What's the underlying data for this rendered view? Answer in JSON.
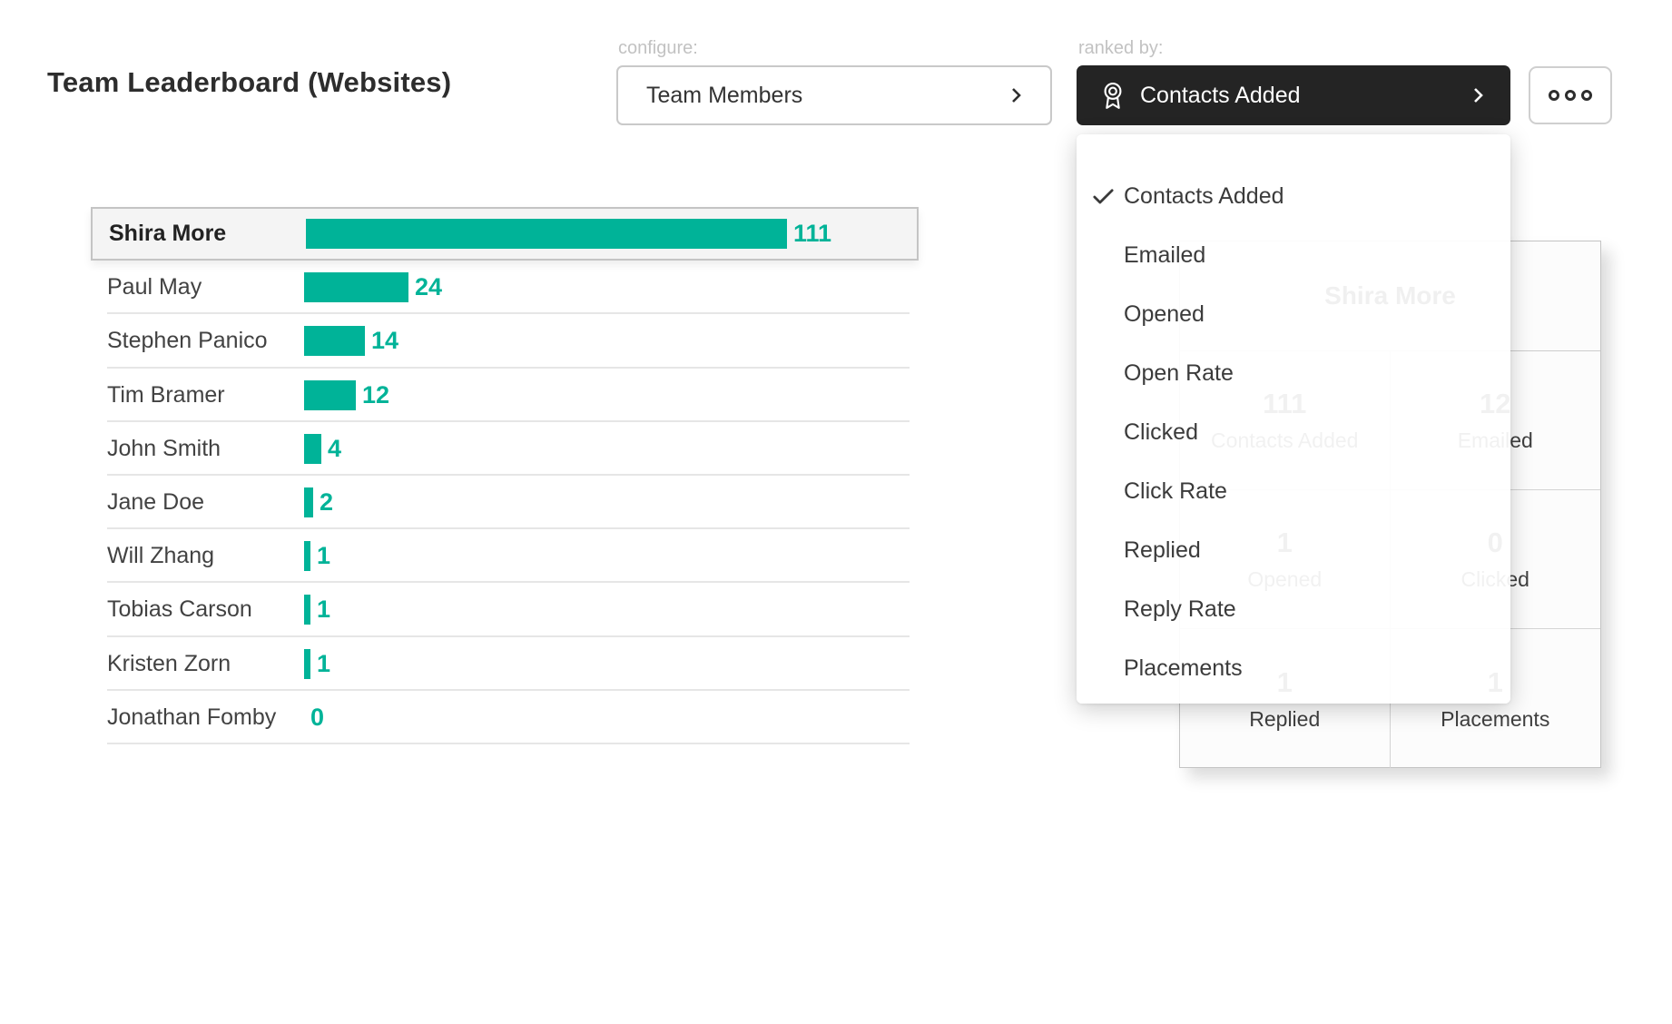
{
  "header": {
    "title": "Team Leaderboard (Websites)",
    "configure_label": "configure:",
    "configure_value": "Team Members",
    "ranked_by_label": "ranked by:",
    "ranked_by_value": "Contacts Added"
  },
  "colors": {
    "accent_teal": "#00b398",
    "dark_button_bg": "#242424",
    "selected_row_bg": "#f4f4f4"
  },
  "chart_data": {
    "type": "bar",
    "orientation": "horizontal",
    "title": "Team Leaderboard (Websites)",
    "metric": "Contacts Added",
    "categories": [
      "Shira More",
      "Paul May",
      "Stephen Panico",
      "Tim Bramer",
      "John Smith",
      "Jane Doe",
      "Will Zhang",
      "Tobias Carson",
      "Kristen Zorn",
      "Jonathan Fomby"
    ],
    "values": [
      111,
      24,
      14,
      12,
      4,
      2,
      1,
      1,
      1,
      0
    ],
    "highlighted_category": "Shira More",
    "bar_color": "#00b398",
    "value_labels_shown": true,
    "xlabel": "",
    "ylabel": ""
  },
  "ranked_by_menu": {
    "items": [
      {
        "label": "Contacts Added",
        "checked": true
      },
      {
        "label": "Emailed",
        "checked": false
      },
      {
        "label": "Opened",
        "checked": false
      },
      {
        "label": "Open Rate",
        "checked": false
      },
      {
        "label": "Clicked",
        "checked": false
      },
      {
        "label": "Click Rate",
        "checked": false
      },
      {
        "label": "Replied",
        "checked": false
      },
      {
        "label": "Reply Rate",
        "checked": false
      },
      {
        "label": "Placements",
        "checked": false
      }
    ]
  },
  "detail_card": {
    "title": "Shira More",
    "stats": [
      {
        "value": "111",
        "label": "Contacts Added"
      },
      {
        "value": "12",
        "label": "Emailed"
      },
      {
        "value": "1",
        "label": "Opened"
      },
      {
        "value": "0",
        "label": "Clicked"
      },
      {
        "value": "1",
        "label": "Replied"
      },
      {
        "value": "1",
        "label": "Placements"
      }
    ]
  }
}
